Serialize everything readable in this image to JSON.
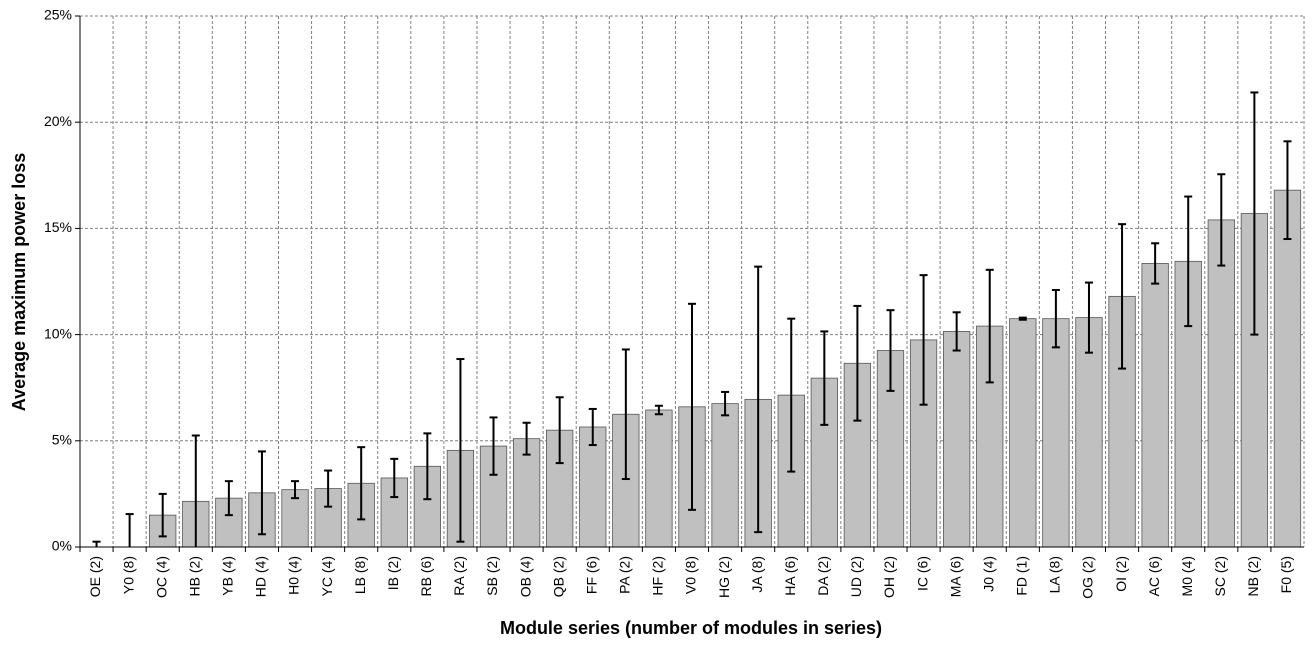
{
  "chart_data": {
    "type": "bar",
    "x_label": "Module series (number of modules in series)",
    "y_label": "Average maximum power loss",
    "categories": [
      "OE (2)",
      "Y0 (8)",
      "OC (4)",
      "HB (2)",
      "YB (4)",
      "HD (4)",
      "H0 (4)",
      "YC (4)",
      "LB (8)",
      "IB (2)",
      "RB (6)",
      "RA (2)",
      "SB (2)",
      "OB (4)",
      "QB (2)",
      "FF (6)",
      "PA (2)",
      "HF (2)",
      "V0 (8)",
      "HG (2)",
      "JA (8)",
      "HA (6)",
      "DA (2)",
      "UD (2)",
      "OH (2)",
      "IC (6)",
      "MA (6)",
      "J0 (4)",
      "FD (1)",
      "LA (8)",
      "OG (2)",
      "OI (2)",
      "AC (6)",
      "M0 (4)",
      "SC (2)",
      "NB (2)",
      "F0 (5)"
    ],
    "values": [
      0,
      0,
      1.5,
      2.15,
      2.3,
      2.55,
      2.7,
      2.75,
      3.0,
      3.25,
      3.8,
      4.55,
      4.75,
      5.1,
      5.5,
      5.65,
      6.25,
      6.45,
      6.6,
      6.75,
      6.95,
      7.15,
      7.95,
      8.65,
      9.25,
      9.75,
      10.15,
      10.4,
      10.75,
      10.75,
      10.8,
      11.8,
      13.35,
      13.45,
      15.4,
      15.7,
      16.8
    ],
    "errors": [
      0.25,
      1.55,
      1.0,
      3.1,
      0.8,
      1.95,
      0.4,
      0.85,
      1.7,
      0.9,
      1.55,
      4.3,
      1.35,
      0.75,
      1.55,
      0.85,
      3.05,
      0.2,
      4.85,
      0.55,
      6.25,
      3.6,
      2.2,
      2.7,
      1.9,
      3.05,
      0.9,
      2.65,
      0.05,
      1.35,
      1.65,
      3.4,
      0.95,
      3.05,
      2.15,
      5.7,
      2.3
    ],
    "color": "#c0c0c0",
    "ylim": [
      0,
      25
    ],
    "yticks": [
      {
        "value": 0,
        "label": "0%"
      },
      {
        "value": 5,
        "label": "5%"
      },
      {
        "value": 10,
        "label": "10%"
      },
      {
        "value": 15,
        "label": "15%"
      },
      {
        "value": 20,
        "label": "20%"
      },
      {
        "value": 25,
        "label": "25%"
      }
    ],
    "grid": true
  }
}
